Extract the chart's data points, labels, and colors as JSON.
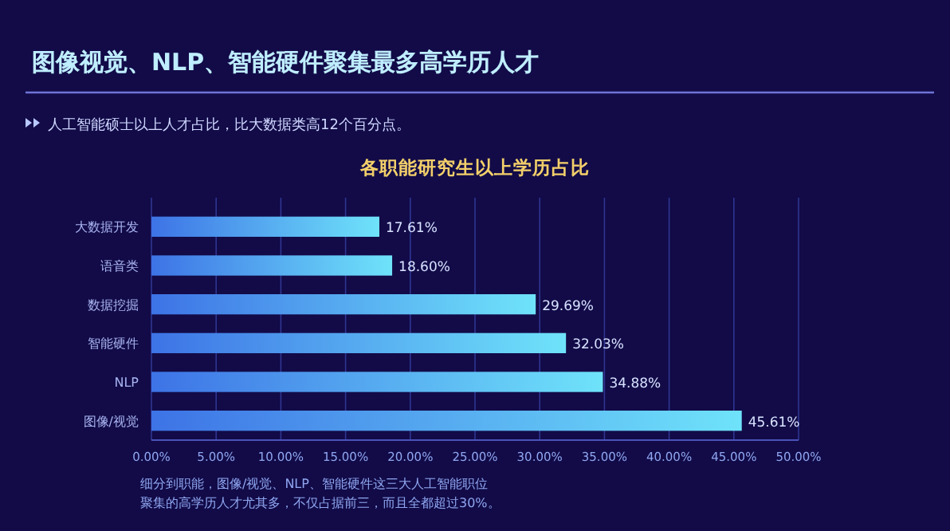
{
  "chart_data": {
    "type": "bar",
    "orientation": "horizontal",
    "title": "图像视觉、NLP、智能硬件聚集最多高学历人才",
    "subtitle": "人工智能硕士以上人才占比，比大数据类高12个百分点。",
    "annotations": [
      "各职能研究生以上学历占比",
      "细分到职能，图像/视觉、NLP、智能硬件这三大人工智能职位",
      "聚集的高学历人才尤其多，不仅占据前三，而且全都超过30%。"
    ],
    "categories": [
      "大数据开发",
      "语音类",
      "数据挖掘",
      "智能硬件",
      "NLP",
      "图像/视觉"
    ],
    "values": [
      17.61,
      18.6,
      29.69,
      32.03,
      34.88,
      45.61
    ],
    "color": "#6fe3fa",
    "value_labels": [
      "17.61%",
      "18.60%",
      "29.69%",
      "32.03%",
      "34.88%",
      "45.61%"
    ],
    "xlim": [
      0,
      50
    ],
    "xticks": [
      {
        "value": 0,
        "label": "0.00%"
      },
      {
        "value": 5,
        "label": "5.00%"
      },
      {
        "value": 10,
        "label": "10.00%"
      },
      {
        "value": 15,
        "label": "15.00%"
      },
      {
        "value": 20,
        "label": "20.00%"
      },
      {
        "value": 25,
        "label": "25.00%"
      },
      {
        "value": 30,
        "label": "30.00%"
      },
      {
        "value": 35,
        "label": "35.00%"
      },
      {
        "value": 40,
        "label": "40.00%"
      },
      {
        "value": 45,
        "label": "45.00%"
      },
      {
        "value": 50,
        "label": "50.00%"
      }
    ],
    "grid": "x"
  }
}
